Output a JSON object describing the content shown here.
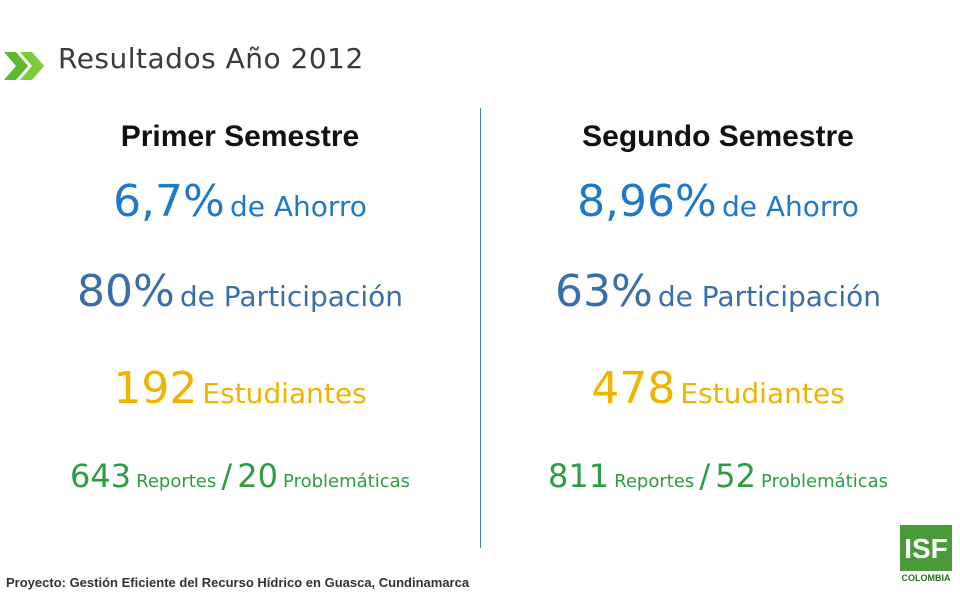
{
  "header": {
    "title": "Resultados Año 2012"
  },
  "columns": [
    {
      "heading": "Primer Semestre",
      "savings": {
        "value": "6,7%",
        "label": "de Ahorro"
      },
      "participation": {
        "value": "80%",
        "label": "de Participación"
      },
      "students": {
        "value": "192",
        "label": "Estudiantes"
      },
      "reports": {
        "value": "643",
        "label": "Reportes",
        "separator": "/",
        "count": "20",
        "count_label": "Problemáticas"
      }
    },
    {
      "heading": "Segundo  Semestre",
      "savings": {
        "value": "8,96%",
        "label": "de Ahorro"
      },
      "participation": {
        "value": "63%",
        "label": "de Participación"
      },
      "students": {
        "value": "478",
        "label": "Estudiantes"
      },
      "reports": {
        "value": "811",
        "label": "Reportes",
        "separator": "/",
        "count": "52",
        "count_label": "Problemáticas"
      }
    }
  ],
  "footer": {
    "text": "Proyecto: Gestión Eficiente del Recurso Hídrico en Guasca, Cundinamarca"
  },
  "logo": {
    "text": "ISF",
    "subtitle": "COLOMBIA"
  }
}
